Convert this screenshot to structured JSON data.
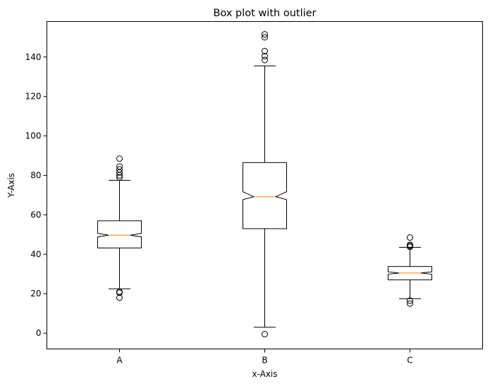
{
  "chart_data": {
    "type": "box",
    "title": "Box plot with outlier",
    "xlabel": "x-Axis",
    "ylabel": "Y-Axis",
    "ylim": [
      -8,
      158
    ],
    "yticks": [
      0,
      20,
      40,
      60,
      80,
      100,
      120,
      140
    ],
    "notched": true,
    "grid": false,
    "box_color": "#000000",
    "median_color": "#ff7f0e",
    "categories": [
      "A",
      "B",
      "C"
    ],
    "boxes": [
      {
        "label": "A",
        "whisker_low": 22.5,
        "q1": 43.2,
        "median": 49.7,
        "q3": 57.0,
        "whisker_high": 77.5,
        "notch_low": 48.8,
        "notch_high": 50.6,
        "outliers": [
          18,
          20.5,
          21,
          79,
          80,
          81.5,
          83,
          84.5,
          88.5
        ]
      },
      {
        "label": "B",
        "whisker_low": 3,
        "q1": 53,
        "median": 69.2,
        "q3": 86.5,
        "whisker_high": 135.5,
        "notch_low": 67.7,
        "notch_high": 71.7,
        "outliers": [
          -0.5,
          138.5,
          140.5,
          143,
          150,
          151.5
        ]
      },
      {
        "label": "C",
        "whisker_low": 17.5,
        "q1": 27,
        "median": 30.5,
        "q3": 33.8,
        "whisker_high": 43.5,
        "notch_low": 29.9,
        "notch_high": 31.1,
        "outliers": [
          15,
          16.5,
          43.8,
          44.3,
          44.8,
          48.5
        ]
      }
    ]
  }
}
